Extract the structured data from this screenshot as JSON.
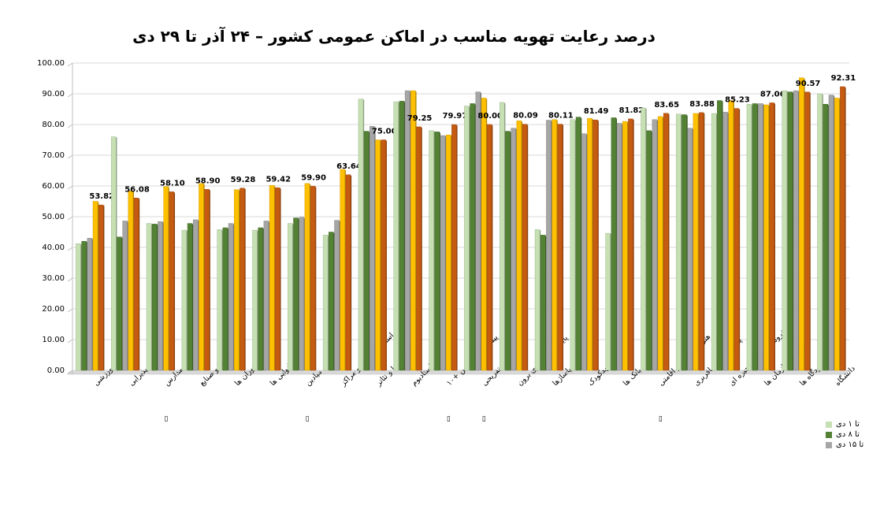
{
  "chart_data": {
    "type": "bar",
    "title": "درصد رعایت تهویه مناسب در اماکن عمومی کشور – ۲۴ آذر تا ۲۹ دی",
    "xlabel": "",
    "ylabel": "",
    "ylim": [
      0,
      100
    ],
    "yticks": [
      "0.00",
      "10.00",
      "20.00",
      "30.00",
      "40.00",
      "50.00",
      "60.00",
      "70.00",
      "80.00",
      "90.00",
      "100.00"
    ],
    "grid": true,
    "legend_position": "bottom-right",
    "categories": [
      "مراکز ورزشی",
      "تالارهای پذیرایی",
      "مدارس",
      "کارگاه ها و صنایع",
      "رستوران ها",
      "نانوایی ها",
      "میادین",
      "استخرهای شنا و مراکز",
      "سالن سینما و تئاتر",
      "استادیوم",
      "پیشخوان و پلیس +۱۰",
      "مراکز تفریحی",
      "پایانه مسافربری برون",
      "پاساژها",
      "مهدکودک",
      "بانک ها",
      "هتل ها و مراکز اقامتی",
      "پایانه های مسافربری",
      "فروشگاه های زنجیره ای",
      "ادارات و سازمان ها",
      "فرودگاه ها",
      "دانشگاه"
    ],
    "series": [
      {
        "name": "تا ۱ دی",
        "color": "#c6e0b4",
        "values": [
          41.2,
          76.0,
          47.8,
          45.6,
          45.8,
          45.6,
          47.8,
          44.0,
          88.3,
          87.4,
          78.0,
          86.0,
          87.2,
          45.8,
          81.6,
          44.6,
          85.4,
          83.4,
          83.6,
          86.6,
          91.0,
          90.0
        ]
      },
      {
        "name": "تا ۸ دی",
        "color": "#548235",
        "values": [
          42.0,
          43.4,
          47.6,
          47.8,
          46.4,
          46.4,
          49.6,
          45.0,
          77.8,
          87.6,
          77.6,
          86.8,
          77.8,
          44.0,
          82.4,
          82.2,
          78.0,
          83.2,
          87.8,
          86.8,
          90.6,
          86.6
        ]
      },
      {
        "name": "تا ۱۵ دی",
        "color": "#a6a6a6",
        "values": [
          43.0,
          48.6,
          48.4,
          49.0,
          47.8,
          48.6,
          49.8,
          48.8,
          79.4,
          91.0,
          76.4,
          90.6,
          78.8,
          81.4,
          77.0,
          80.4,
          81.6,
          78.8,
          84.0,
          86.8,
          91.0,
          89.6
        ]
      },
      {
        "name": "",
        "color": "#ffc000",
        "values": [
          55.0,
          58.4,
          59.8,
          60.8,
          58.8,
          60.2,
          60.8,
          65.4,
          75.0,
          91.0,
          76.6,
          88.6,
          81.2,
          81.6,
          82.0,
          81.0,
          82.6,
          83.6,
          87.8,
          86.4,
          95.2,
          88.6
        ]
      },
      {
        "name": "",
        "color": "#c55a11",
        "values": [
          53.82,
          56.08,
          58.1,
          58.9,
          59.28,
          59.42,
          59.9,
          63.64,
          75.0,
          79.25,
          79.97,
          80.0,
          80.09,
          80.11,
          81.49,
          81.82,
          83.65,
          83.88,
          85.23,
          87.06,
          90.57,
          92.31
        ]
      }
    ],
    "data_labels": [
      "53.82",
      "56.08",
      "58.10",
      "58.90",
      "59.28",
      "59.42",
      "59.90",
      "63.64",
      "75.00",
      "79.25",
      "79.97",
      "80.00",
      "80.09",
      "80.11",
      "81.49",
      "81.82",
      "83.65",
      "83.88",
      "85.23",
      "87.06",
      "90.57",
      "92.31"
    ],
    "category_marks": [
      "",
      "",
      "",
      "▯",
      "",
      "",
      "",
      "▯",
      "",
      "",
      "",
      "▯",
      "▯",
      "",
      "",
      "",
      "",
      "▯",
      "",
      "",
      "",
      ""
    ]
  }
}
